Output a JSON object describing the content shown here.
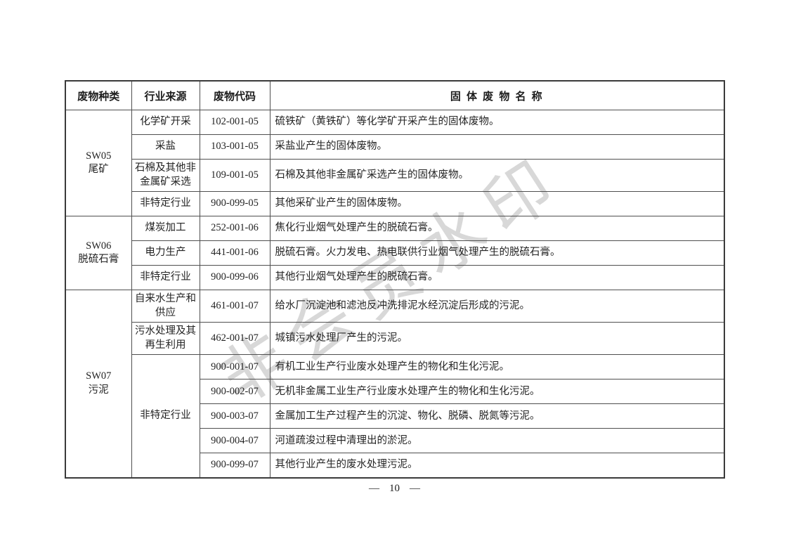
{
  "watermark": {
    "text": "非会员水印",
    "color": "#d8d8d8"
  },
  "footer": {
    "left_dash": "—",
    "page_number": "10",
    "right_dash": "—"
  },
  "table": {
    "headers": [
      "废物种类",
      "行业来源",
      "废物代码",
      "固 体 废 物 名 称"
    ],
    "groups": [
      {
        "category_code": "SW05",
        "category_name": "尾矿",
        "rows": [
          {
            "source": "化学矿开采",
            "code": "102-001-05",
            "name": "硫铁矿（黄铁矿）等化学矿开采产生的固体废物。"
          },
          {
            "source": "采盐",
            "code": "103-001-05",
            "name": "采盐业产生的固体废物。"
          },
          {
            "source": "石棉及其他非金属矿采选",
            "code": "109-001-05",
            "name": "石棉及其他非金属矿采选产生的固体废物。"
          },
          {
            "source": "非特定行业",
            "code": "900-099-05",
            "name": "其他采矿业产生的固体废物。"
          }
        ]
      },
      {
        "category_code": "SW06",
        "category_name": "脱硫石膏",
        "rows": [
          {
            "source": "煤炭加工",
            "code": "252-001-06",
            "name": "焦化行业烟气处理产生的脱硫石膏。"
          },
          {
            "source": "电力生产",
            "code": "441-001-06",
            "name": "脱硫石膏。火力发电、热电联供行业烟气处理产生的脱硫石膏。"
          },
          {
            "source": "非特定行业",
            "code": "900-099-06",
            "name": "其他行业烟气处理产生的脱硫石膏。"
          }
        ]
      },
      {
        "category_code": "SW07",
        "category_name": "污泥",
        "rows": [
          {
            "source": "自来水生产和供应",
            "code": "461-001-07",
            "name": "给水厂沉淀池和滤池反冲洗排泥水经沉淀后形成的污泥。"
          },
          {
            "source": "污水处理及其再生利用",
            "code": "462-001-07",
            "name": "城镇污水处理厂产生的污泥。"
          },
          {
            "source": "非特定行业",
            "source_rowspan": 5,
            "code": "900-001-07",
            "name": "有机工业生产行业废水处理产生的物化和生化污泥。"
          },
          {
            "code": "900-002-07",
            "name": "无机非金属工业生产行业废水处理产生的物化和生化污泥。"
          },
          {
            "code": "900-003-07",
            "name": "金属加工生产过程产生的沉淀、物化、脱磷、脱氮等污泥。"
          },
          {
            "code": "900-004-07",
            "name": "河道疏浚过程中清理出的淤泥。"
          },
          {
            "code": "900-099-07",
            "name": "其他行业产生的废水处理污泥。"
          }
        ]
      }
    ]
  }
}
